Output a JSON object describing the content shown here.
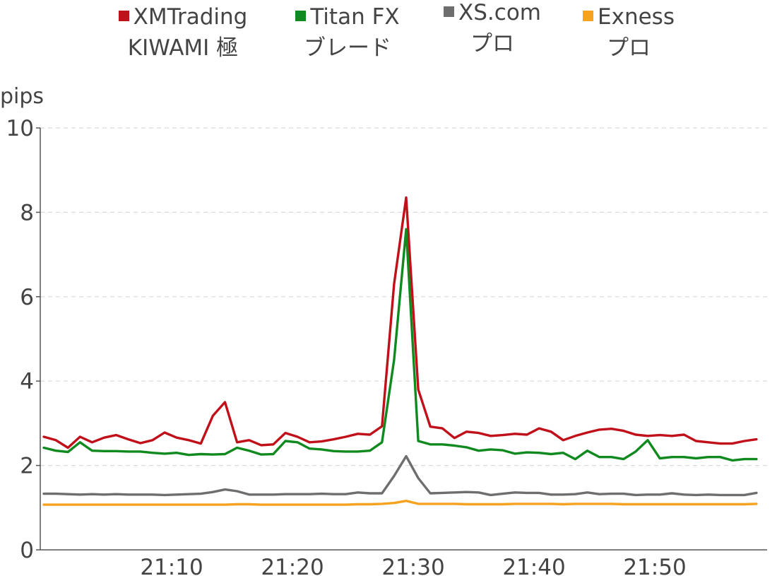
{
  "chart_data": {
    "type": "line",
    "ylabel": "pips",
    "ylim": [
      0,
      10
    ],
    "yticks": [
      "0",
      "2",
      "4",
      "6",
      "8",
      "10"
    ],
    "xticks": [
      "21:10",
      "21:20",
      "21:30",
      "21:40",
      "21:50"
    ],
    "xtick_minutes": [
      10,
      20,
      30,
      40,
      50
    ],
    "xlim": [
      0,
      60
    ],
    "grid": "horizontal dashed",
    "legend_position": "top",
    "series": [
      {
        "name_line1": "XMTrading",
        "name_line2": "KIWAMI 極",
        "color": "#c0101a",
        "x": [
          0,
          1,
          2,
          3,
          4,
          5,
          6,
          7,
          8,
          9,
          10,
          11,
          12,
          13,
          14,
          15,
          16,
          17,
          18,
          19,
          20,
          21,
          22,
          23,
          24,
          25,
          26,
          27,
          28,
          29,
          30,
          31,
          32,
          33,
          34,
          35,
          36,
          37,
          38,
          39,
          40,
          41,
          42,
          43,
          44,
          45,
          46,
          47,
          48,
          49,
          50,
          51,
          52,
          53,
          54,
          55,
          56,
          57,
          58,
          59
        ],
        "values": [
          2.68,
          2.6,
          2.42,
          2.68,
          2.55,
          2.66,
          2.72,
          2.62,
          2.53,
          2.6,
          2.78,
          2.66,
          2.6,
          2.52,
          3.18,
          3.5,
          2.55,
          2.6,
          2.48,
          2.5,
          2.77,
          2.68,
          2.55,
          2.57,
          2.62,
          2.68,
          2.75,
          2.73,
          2.93,
          6.3,
          8.35,
          3.8,
          2.92,
          2.88,
          2.65,
          2.8,
          2.77,
          2.7,
          2.72,
          2.75,
          2.73,
          2.88,
          2.8,
          2.6,
          2.7,
          2.78,
          2.85,
          2.87,
          2.82,
          2.73,
          2.7,
          2.72,
          2.7,
          2.73,
          2.58,
          2.55,
          2.52,
          2.52,
          2.58,
          2.62
        ]
      },
      {
        "name_line1": "Titan FX",
        "name_line2": "ブレード",
        "color": "#108a1e",
        "x": [
          0,
          1,
          2,
          3,
          4,
          5,
          6,
          7,
          8,
          9,
          10,
          11,
          12,
          13,
          14,
          15,
          16,
          17,
          18,
          19,
          20,
          21,
          22,
          23,
          24,
          25,
          26,
          27,
          28,
          29,
          30,
          31,
          32,
          33,
          34,
          35,
          36,
          37,
          38,
          39,
          40,
          41,
          42,
          43,
          44,
          45,
          46,
          47,
          48,
          49,
          50,
          51,
          52,
          53,
          54,
          55,
          56,
          57,
          58,
          59
        ],
        "values": [
          2.42,
          2.35,
          2.32,
          2.55,
          2.35,
          2.34,
          2.34,
          2.33,
          2.33,
          2.3,
          2.28,
          2.3,
          2.25,
          2.27,
          2.26,
          2.27,
          2.42,
          2.35,
          2.26,
          2.27,
          2.58,
          2.55,
          2.4,
          2.38,
          2.34,
          2.33,
          2.33,
          2.35,
          2.55,
          4.5,
          7.6,
          2.58,
          2.5,
          2.5,
          2.47,
          2.43,
          2.35,
          2.38,
          2.36,
          2.28,
          2.31,
          2.3,
          2.27,
          2.3,
          2.15,
          2.35,
          2.2,
          2.2,
          2.15,
          2.33,
          2.6,
          2.17,
          2.2,
          2.2,
          2.17,
          2.2,
          2.2,
          2.12,
          2.15,
          2.15
        ]
      },
      {
        "name_line1": "XS.com",
        "name_line2": "プロ",
        "color": "#6e6e6e",
        "x": [
          0,
          1,
          2,
          3,
          4,
          5,
          6,
          7,
          8,
          9,
          10,
          11,
          12,
          13,
          14,
          15,
          16,
          17,
          18,
          19,
          20,
          21,
          22,
          23,
          24,
          25,
          26,
          27,
          28,
          29,
          30,
          31,
          32,
          33,
          34,
          35,
          36,
          37,
          38,
          39,
          40,
          41,
          42,
          43,
          44,
          45,
          46,
          47,
          48,
          49,
          50,
          51,
          52,
          53,
          54,
          55,
          56,
          57,
          58,
          59
        ],
        "values": [
          1.33,
          1.33,
          1.32,
          1.31,
          1.32,
          1.31,
          1.32,
          1.31,
          1.31,
          1.31,
          1.3,
          1.31,
          1.32,
          1.33,
          1.37,
          1.43,
          1.39,
          1.31,
          1.31,
          1.31,
          1.32,
          1.32,
          1.32,
          1.33,
          1.32,
          1.32,
          1.36,
          1.34,
          1.34,
          1.75,
          2.22,
          1.7,
          1.34,
          1.35,
          1.36,
          1.37,
          1.36,
          1.3,
          1.33,
          1.36,
          1.35,
          1.35,
          1.31,
          1.31,
          1.32,
          1.36,
          1.32,
          1.33,
          1.33,
          1.3,
          1.31,
          1.31,
          1.34,
          1.31,
          1.3,
          1.31,
          1.3,
          1.3,
          1.3,
          1.35
        ]
      },
      {
        "name_line1": "Exness",
        "name_line2": "プロ",
        "color": "#f5a220",
        "x": [
          0,
          1,
          2,
          3,
          4,
          5,
          6,
          7,
          8,
          9,
          10,
          11,
          12,
          13,
          14,
          15,
          16,
          17,
          18,
          19,
          20,
          21,
          22,
          23,
          24,
          25,
          26,
          27,
          28,
          29,
          30,
          31,
          32,
          33,
          34,
          35,
          36,
          37,
          38,
          39,
          40,
          41,
          42,
          43,
          44,
          45,
          46,
          47,
          48,
          49,
          50,
          51,
          52,
          53,
          54,
          55,
          56,
          57,
          58,
          59
        ],
        "values": [
          1.07,
          1.07,
          1.07,
          1.07,
          1.07,
          1.07,
          1.07,
          1.07,
          1.07,
          1.07,
          1.07,
          1.07,
          1.07,
          1.07,
          1.07,
          1.07,
          1.08,
          1.08,
          1.07,
          1.07,
          1.07,
          1.07,
          1.07,
          1.07,
          1.07,
          1.07,
          1.08,
          1.08,
          1.09,
          1.11,
          1.16,
          1.09,
          1.09,
          1.09,
          1.09,
          1.08,
          1.08,
          1.08,
          1.08,
          1.09,
          1.09,
          1.09,
          1.09,
          1.08,
          1.09,
          1.09,
          1.09,
          1.09,
          1.08,
          1.08,
          1.08,
          1.08,
          1.08,
          1.08,
          1.08,
          1.08,
          1.08,
          1.08,
          1.08,
          1.09
        ]
      }
    ]
  }
}
